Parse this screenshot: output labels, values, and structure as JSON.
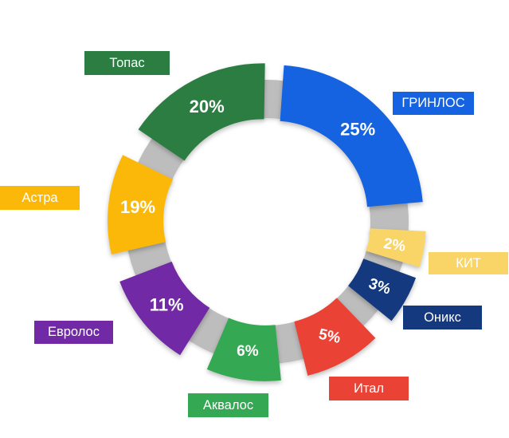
{
  "chart_data": {
    "type": "pie",
    "subtype": "exploded-donut",
    "title": "",
    "unit": "%",
    "start_angle": "top",
    "direction": "clockwise",
    "legend_position": "outside-tags",
    "background_color": "#FFFFFF",
    "connector_color": "#BDBDBD",
    "value_text_color": "#FFFFFF",
    "tag_text_color": "#FFFFFF",
    "segments": [
      {
        "label": "ГРИНЛОС",
        "value": 25,
        "value_label": "25%",
        "color": "#1563E0"
      },
      {
        "label": "КИТ",
        "value": 2,
        "value_label": "2%",
        "color": "#F8D566"
      },
      {
        "label": "Оникс",
        "value": 3,
        "value_label": "3%",
        "color": "#14397E"
      },
      {
        "label": "Итал",
        "value": 5,
        "value_label": "5%",
        "color": "#EA4335"
      },
      {
        "label": "Аквалос",
        "value": 6,
        "value_label": "6%",
        "color": "#34A853"
      },
      {
        "label": "Евролос",
        "value": 11,
        "value_label": "11%",
        "color": "#7129A5"
      },
      {
        "label": "Астра",
        "value": 19,
        "value_label": "19%",
        "color": "#FCB808"
      },
      {
        "label": "Топас",
        "value": 20,
        "value_label": "20%",
        "color": "#2B7D41"
      }
    ]
  }
}
